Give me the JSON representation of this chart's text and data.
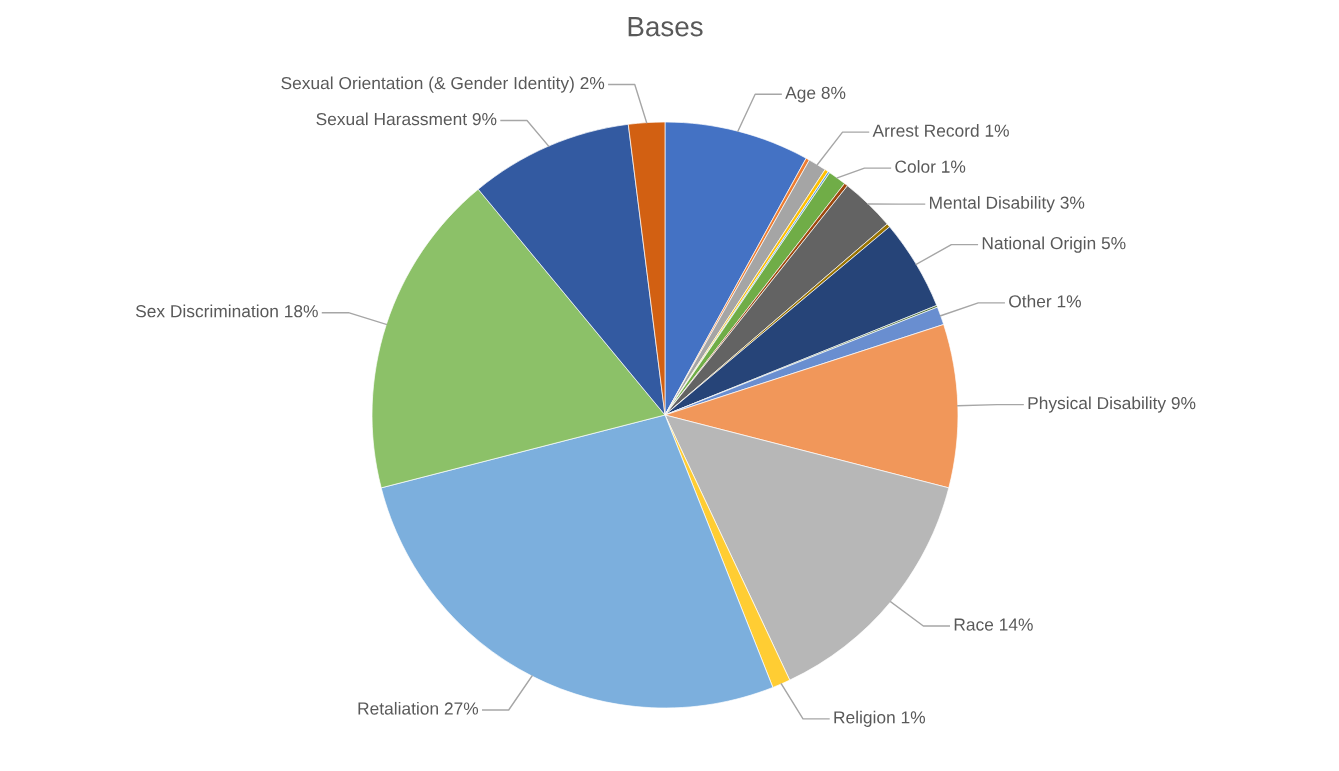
{
  "chart_data": {
    "type": "pie",
    "title": "Bases",
    "categories": [
      "Age",
      null,
      "Arrest Record",
      null,
      null,
      "Color",
      null,
      "Mental Disability",
      null,
      "National Origin",
      null,
      "Other",
      "Physical Disability",
      "Race",
      "Religion",
      "Retaliation",
      "Sex Discrimination",
      "Sexual Harassment",
      "Sexual Orientation (& Gender Identity)"
    ],
    "values": [
      8,
      0.2,
      1,
      0.2,
      0.1,
      1,
      0.2,
      3,
      0.2,
      5,
      0.1,
      1,
      9,
      14,
      1,
      27,
      18,
      9,
      2
    ],
    "colors": [
      "#4472c4",
      "#ed7d31",
      "#a5a5a5",
      "#ffc000",
      "#5b9bd5",
      "#70ad47",
      "#9e480e",
      "#636363",
      "#997300",
      "#264478",
      "#43682b",
      "#698ed0",
      "#f1975a",
      "#b7b7b7",
      "#ffcd33",
      "#7cafdd",
      "#8cc168",
      "#335aa1",
      "#d26012"
    ],
    "value_labels": [
      "8%",
      null,
      "1%",
      null,
      null,
      "1%",
      null,
      "3%",
      null,
      "5%",
      null,
      "1%",
      "9%",
      "14%",
      "1%",
      "27%",
      "18%",
      "9%",
      "2%"
    ],
    "legend": false
  }
}
